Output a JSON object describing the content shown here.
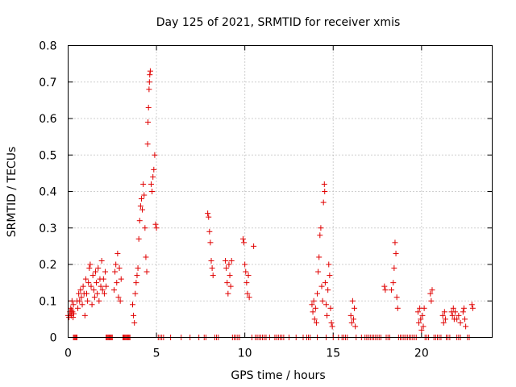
{
  "chart_data": {
    "type": "scatter",
    "title": "Day 125 of 2021, SRMTID for receiver xmis",
    "xlabel": "GPS time / hours",
    "ylabel": "SRMTID / TECUs",
    "xlim": [
      0,
      24
    ],
    "ylim": [
      0,
      0.8
    ],
    "xticks": [
      0,
      5,
      10,
      15,
      20
    ],
    "xtick_labels": [
      "0",
      "5",
      "10",
      "15",
      "20"
    ],
    "yticks": [
      0,
      0.1,
      0.2,
      0.3,
      0.4,
      0.5,
      0.6,
      0.7,
      0.8
    ],
    "ytick_labels": [
      "0",
      "0.1",
      "0.2",
      "0.3",
      "0.4",
      "0.5",
      "0.6",
      "0.7",
      "0.8"
    ],
    "grid": true,
    "marker": "+",
    "color": "#e00000",
    "series": [
      {
        "name": "SRMTID",
        "points": [
          [
            0.0,
            0.06
          ],
          [
            0.05,
            0.055
          ],
          [
            0.1,
            0.07
          ],
          [
            0.12,
            0.065
          ],
          [
            0.15,
            0.08
          ],
          [
            0.18,
            0.06
          ],
          [
            0.2,
            0.075
          ],
          [
            0.22,
            0.1
          ],
          [
            0.25,
            0.07
          ],
          [
            0.28,
            0.055
          ],
          [
            0.3,
            0.09
          ],
          [
            0.32,
            0.065
          ],
          [
            0.5,
            0.1
          ],
          [
            0.55,
            0.08
          ],
          [
            0.6,
            0.12
          ],
          [
            0.65,
            0.1
          ],
          [
            0.7,
            0.13
          ],
          [
            0.75,
            0.11
          ],
          [
            0.8,
            0.09
          ],
          [
            0.85,
            0.14
          ],
          [
            0.9,
            0.12
          ],
          [
            0.95,
            0.06
          ],
          [
            1.0,
            0.16
          ],
          [
            1.05,
            0.12
          ],
          [
            1.1,
            0.1
          ],
          [
            1.15,
            0.15
          ],
          [
            1.2,
            0.19
          ],
          [
            1.25,
            0.2
          ],
          [
            1.3,
            0.14
          ],
          [
            1.35,
            0.09
          ],
          [
            1.4,
            0.17
          ],
          [
            1.45,
            0.13
          ],
          [
            1.5,
            0.11
          ],
          [
            1.55,
            0.18
          ],
          [
            1.6,
            0.15
          ],
          [
            1.65,
            0.12
          ],
          [
            1.7,
            0.19
          ],
          [
            1.75,
            0.1
          ],
          [
            1.8,
            0.16
          ],
          [
            1.85,
            0.14
          ],
          [
            1.9,
            0.21
          ],
          [
            1.95,
            0.13
          ],
          [
            2.0,
            0.16
          ],
          [
            2.05,
            0.12
          ],
          [
            2.1,
            0.18
          ],
          [
            2.15,
            0.14
          ],
          [
            2.6,
            0.13
          ],
          [
            2.65,
            0.18
          ],
          [
            2.7,
            0.2
          ],
          [
            2.75,
            0.15
          ],
          [
            2.8,
            0.23
          ],
          [
            2.85,
            0.11
          ],
          [
            2.9,
            0.19
          ],
          [
            2.95,
            0.1
          ],
          [
            3.0,
            0.16
          ],
          [
            3.65,
            0.09
          ],
          [
            3.7,
            0.06
          ],
          [
            3.75,
            0.04
          ],
          [
            3.8,
            0.12
          ],
          [
            3.85,
            0.15
          ],
          [
            3.9,
            0.17
          ],
          [
            3.95,
            0.19
          ],
          [
            4.0,
            0.27
          ],
          [
            4.05,
            0.32
          ],
          [
            4.1,
            0.36
          ],
          [
            4.15,
            0.38
          ],
          [
            4.2,
            0.35
          ],
          [
            4.25,
            0.42
          ],
          [
            4.3,
            0.39
          ],
          [
            4.35,
            0.3
          ],
          [
            4.4,
            0.22
          ],
          [
            4.45,
            0.18
          ],
          [
            4.5,
            0.53
          ],
          [
            4.52,
            0.59
          ],
          [
            4.55,
            0.63
          ],
          [
            4.58,
            0.68
          ],
          [
            4.6,
            0.7
          ],
          [
            4.62,
            0.72
          ],
          [
            4.65,
            0.73
          ],
          [
            4.7,
            0.42
          ],
          [
            4.75,
            0.4
          ],
          [
            4.8,
            0.44
          ],
          [
            4.85,
            0.46
          ],
          [
            4.9,
            0.5
          ],
          [
            4.95,
            0.31
          ],
          [
            5.0,
            0.3
          ],
          [
            7.9,
            0.34
          ],
          [
            7.95,
            0.33
          ],
          [
            8.0,
            0.29
          ],
          [
            8.05,
            0.26
          ],
          [
            8.1,
            0.21
          ],
          [
            8.15,
            0.19
          ],
          [
            8.2,
            0.17
          ],
          [
            8.9,
            0.21
          ],
          [
            8.95,
            0.19
          ],
          [
            9.0,
            0.15
          ],
          [
            9.05,
            0.12
          ],
          [
            9.1,
            0.2
          ],
          [
            9.15,
            0.17
          ],
          [
            9.2,
            0.14
          ],
          [
            9.25,
            0.21
          ],
          [
            9.9,
            0.27
          ],
          [
            9.95,
            0.26
          ],
          [
            10.0,
            0.2
          ],
          [
            10.05,
            0.18
          ],
          [
            10.1,
            0.15
          ],
          [
            10.15,
            0.12
          ],
          [
            10.2,
            0.17
          ],
          [
            10.25,
            0.11
          ],
          [
            10.5,
            0.25
          ],
          [
            13.8,
            0.09
          ],
          [
            13.85,
            0.07
          ],
          [
            13.9,
            0.1
          ],
          [
            13.95,
            0.05
          ],
          [
            14.0,
            0.08
          ],
          [
            14.05,
            0.04
          ],
          [
            14.1,
            0.12
          ],
          [
            14.15,
            0.18
          ],
          [
            14.2,
            0.22
          ],
          [
            14.25,
            0.28
          ],
          [
            14.3,
            0.3
          ],
          [
            14.35,
            0.14
          ],
          [
            14.4,
            0.1
          ],
          [
            14.45,
            0.37
          ],
          [
            14.5,
            0.42
          ],
          [
            14.52,
            0.4
          ],
          [
            14.55,
            0.15
          ],
          [
            14.6,
            0.09
          ],
          [
            14.65,
            0.06
          ],
          [
            14.7,
            0.13
          ],
          [
            14.75,
            0.2
          ],
          [
            14.8,
            0.17
          ],
          [
            14.85,
            0.08
          ],
          [
            14.9,
            0.04
          ],
          [
            14.95,
            0.03
          ],
          [
            16.0,
            0.06
          ],
          [
            16.05,
            0.04
          ],
          [
            16.1,
            0.1
          ],
          [
            16.15,
            0.05
          ],
          [
            16.2,
            0.08
          ],
          [
            16.25,
            0.03
          ],
          [
            17.9,
            0.14
          ],
          [
            17.95,
            0.13
          ],
          [
            18.3,
            0.13
          ],
          [
            18.4,
            0.15
          ],
          [
            18.45,
            0.19
          ],
          [
            18.5,
            0.26
          ],
          [
            18.55,
            0.23
          ],
          [
            18.6,
            0.11
          ],
          [
            18.65,
            0.08
          ],
          [
            19.8,
            0.07
          ],
          [
            19.85,
            0.04
          ],
          [
            19.9,
            0.08
          ],
          [
            19.95,
            0.05
          ],
          [
            20.0,
            0.02
          ],
          [
            20.05,
            0.06
          ],
          [
            20.1,
            0.03
          ],
          [
            20.15,
            0.08
          ],
          [
            20.5,
            0.12
          ],
          [
            20.55,
            0.1
          ],
          [
            20.6,
            0.13
          ],
          [
            21.2,
            0.06
          ],
          [
            21.25,
            0.04
          ],
          [
            21.3,
            0.07
          ],
          [
            21.35,
            0.05
          ],
          [
            21.7,
            0.07
          ],
          [
            21.75,
            0.06
          ],
          [
            21.8,
            0.08
          ],
          [
            21.85,
            0.05
          ],
          [
            21.9,
            0.07
          ],
          [
            22.0,
            0.05
          ],
          [
            22.1,
            0.06
          ],
          [
            22.2,
            0.04
          ],
          [
            22.35,
            0.07
          ],
          [
            22.4,
            0.08
          ],
          [
            22.45,
            0.05
          ],
          [
            22.5,
            0.03
          ],
          [
            22.85,
            0.09
          ],
          [
            22.9,
            0.08
          ],
          [
            0.3,
            0.0
          ],
          [
            0.35,
            0.0
          ],
          [
            0.4,
            0.0
          ],
          [
            0.45,
            0.0
          ],
          [
            0.5,
            0.0
          ],
          [
            2.15,
            0.0
          ],
          [
            2.2,
            0.0
          ],
          [
            2.25,
            0.0
          ],
          [
            2.3,
            0.0
          ],
          [
            2.35,
            0.0
          ],
          [
            2.4,
            0.0
          ],
          [
            2.45,
            0.0
          ],
          [
            2.5,
            0.0
          ],
          [
            3.1,
            0.0
          ],
          [
            3.15,
            0.0
          ],
          [
            3.2,
            0.0
          ],
          [
            3.25,
            0.0
          ],
          [
            3.3,
            0.0
          ],
          [
            3.35,
            0.0
          ],
          [
            3.4,
            0.0
          ],
          [
            3.45,
            0.0
          ],
          [
            3.5,
            0.0
          ],
          [
            5.1,
            0.0
          ],
          [
            5.2,
            0.0
          ],
          [
            5.3,
            0.0
          ],
          [
            5.4,
            0.0
          ],
          [
            5.8,
            0.0
          ],
          [
            6.4,
            0.0
          ],
          [
            6.9,
            0.0
          ],
          [
            7.4,
            0.0
          ],
          [
            7.7,
            0.0
          ],
          [
            7.8,
            0.0
          ],
          [
            8.3,
            0.0
          ],
          [
            8.4,
            0.0
          ],
          [
            8.5,
            0.0
          ],
          [
            9.3,
            0.0
          ],
          [
            9.4,
            0.0
          ],
          [
            9.5,
            0.0
          ],
          [
            9.6,
            0.0
          ],
          [
            9.7,
            0.0
          ],
          [
            10.4,
            0.0
          ],
          [
            10.6,
            0.0
          ],
          [
            10.7,
            0.0
          ],
          [
            10.8,
            0.0
          ],
          [
            10.9,
            0.0
          ],
          [
            11.0,
            0.0
          ],
          [
            11.1,
            0.0
          ],
          [
            11.2,
            0.0
          ],
          [
            11.4,
            0.0
          ],
          [
            11.7,
            0.0
          ],
          [
            11.8,
            0.0
          ],
          [
            11.9,
            0.0
          ],
          [
            12.0,
            0.0
          ],
          [
            12.1,
            0.0
          ],
          [
            12.2,
            0.0
          ],
          [
            12.5,
            0.0
          ],
          [
            12.9,
            0.0
          ],
          [
            13.3,
            0.0
          ],
          [
            13.5,
            0.0
          ],
          [
            13.6,
            0.0
          ],
          [
            13.7,
            0.0
          ],
          [
            14.1,
            0.0
          ],
          [
            14.6,
            0.0
          ],
          [
            15.0,
            0.0
          ],
          [
            15.3,
            0.0
          ],
          [
            15.5,
            0.0
          ],
          [
            15.6,
            0.0
          ],
          [
            15.7,
            0.0
          ],
          [
            15.8,
            0.0
          ],
          [
            16.3,
            0.0
          ],
          [
            16.6,
            0.0
          ],
          [
            16.8,
            0.0
          ],
          [
            16.9,
            0.0
          ],
          [
            17.0,
            0.0
          ],
          [
            17.1,
            0.0
          ],
          [
            17.2,
            0.0
          ],
          [
            17.3,
            0.0
          ],
          [
            17.4,
            0.0
          ],
          [
            17.5,
            0.0
          ],
          [
            17.6,
            0.0
          ],
          [
            17.7,
            0.0
          ],
          [
            18.0,
            0.0
          ],
          [
            18.1,
            0.0
          ],
          [
            18.2,
            0.0
          ],
          [
            18.7,
            0.0
          ],
          [
            18.8,
            0.0
          ],
          [
            18.9,
            0.0
          ],
          [
            19.0,
            0.0
          ],
          [
            19.1,
            0.0
          ],
          [
            19.2,
            0.0
          ],
          [
            19.3,
            0.0
          ],
          [
            19.4,
            0.0
          ],
          [
            19.5,
            0.0
          ],
          [
            19.6,
            0.0
          ],
          [
            19.7,
            0.0
          ],
          [
            20.2,
            0.0
          ],
          [
            20.3,
            0.0
          ],
          [
            20.4,
            0.0
          ],
          [
            20.7,
            0.0
          ],
          [
            20.8,
            0.0
          ],
          [
            20.9,
            0.0
          ],
          [
            21.0,
            0.0
          ],
          [
            21.1,
            0.0
          ],
          [
            21.4,
            0.0
          ],
          [
            21.5,
            0.0
          ],
          [
            21.6,
            0.0
          ],
          [
            22.0,
            0.0
          ],
          [
            22.1,
            0.0
          ],
          [
            22.2,
            0.0
          ],
          [
            22.6,
            0.0
          ],
          [
            22.7,
            0.0
          ]
        ]
      }
    ]
  }
}
